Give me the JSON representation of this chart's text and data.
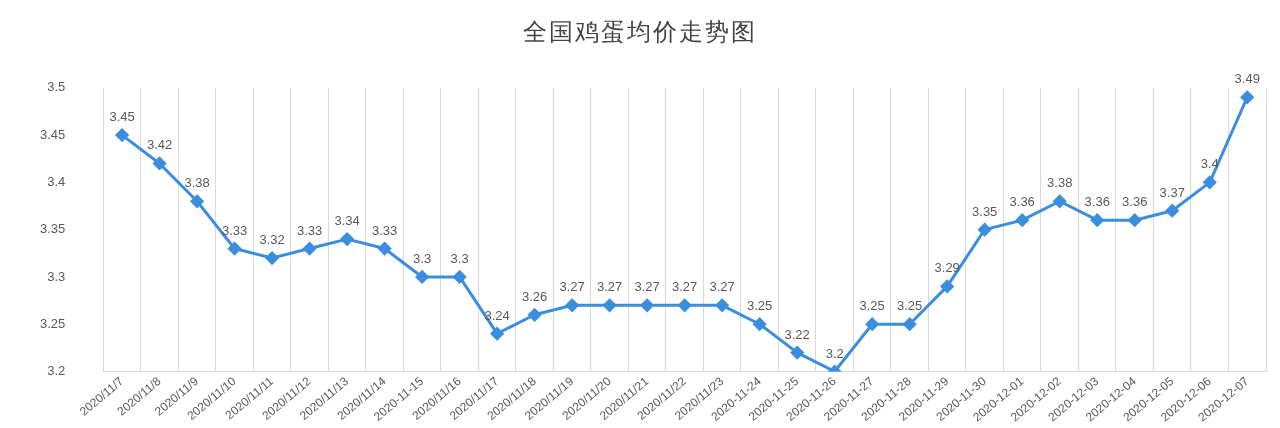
{
  "chart_data": {
    "type": "line",
    "title": "全国鸡蛋均价走势图",
    "categories": [
      "2020/11/7",
      "2020/11/8",
      "2020/11/9",
      "2020/11/10",
      "2020/11/11",
      "2020/11/12",
      "2020/11/13",
      "2020/11/14",
      "2020-11-15",
      "2020/11/16",
      "2020/11/17",
      "2020/11/18",
      "2020/11/19",
      "2020/11/20",
      "2020/11/21",
      "2020/11/22",
      "2020/11/23",
      "2020-11-24",
      "2020-11-25",
      "2020-11-26",
      "2020-11-27",
      "2020-11-28",
      "2020-11-29",
      "2020-11-30",
      "2020-12-01",
      "2020-12-02",
      "2020-12-03",
      "2020-12-04",
      "2020-12-05",
      "2020-12-06",
      "2020-12-07"
    ],
    "series": [
      {
        "color": "#3b8ede",
        "values": [
          3.45,
          3.42,
          3.38,
          3.33,
          3.32,
          3.33,
          3.34,
          3.33,
          3.3,
          3.3,
          3.24,
          3.26,
          3.27,
          3.27,
          3.27,
          3.27,
          3.27,
          3.25,
          3.22,
          3.2,
          3.25,
          3.25,
          3.29,
          3.35,
          3.36,
          3.38,
          3.36,
          3.36,
          3.37,
          3.4,
          3.49
        ]
      }
    ],
    "ylim": [
      3.2,
      3.5
    ],
    "yticks": [
      3.2,
      3.25,
      3.3,
      3.35,
      3.4,
      3.45,
      3.5
    ],
    "grid": "x",
    "legend": false,
    "marker": "diamond",
    "line_style": "solid",
    "data_labels": true
  }
}
